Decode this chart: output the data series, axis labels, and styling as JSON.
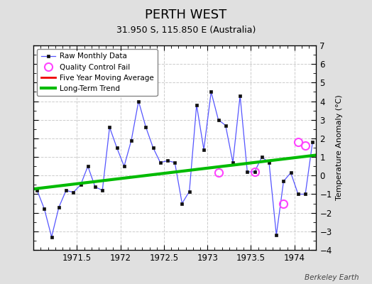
{
  "title": "PERTH WEST",
  "subtitle": "31.950 S, 115.850 E (Australia)",
  "ylabel": "Temperature Anomaly (°C)",
  "watermark": "Berkeley Earth",
  "xlim": [
    1971.0,
    1974.25
  ],
  "ylim": [
    -4,
    7
  ],
  "yticks": [
    -4,
    -3,
    -2,
    -1,
    0,
    1,
    2,
    3,
    4,
    5,
    6,
    7
  ],
  "xticks": [
    1971.5,
    1972.0,
    1972.5,
    1973.0,
    1973.5,
    1974.0
  ],
  "xticklabels": [
    "1971.5",
    "1972",
    "1972.5",
    "1973",
    "1973.5",
    "1974"
  ],
  "raw_x": [
    1971.042,
    1971.125,
    1971.208,
    1971.292,
    1971.375,
    1971.458,
    1971.542,
    1971.625,
    1971.708,
    1971.792,
    1971.875,
    1971.958,
    1972.042,
    1972.125,
    1972.208,
    1972.292,
    1972.375,
    1972.458,
    1972.542,
    1972.625,
    1972.708,
    1972.792,
    1972.875,
    1972.958,
    1973.042,
    1973.125,
    1973.208,
    1973.292,
    1973.375,
    1973.458,
    1973.542,
    1973.625,
    1973.708,
    1973.792,
    1973.875,
    1973.958,
    1974.042,
    1974.125,
    1974.208
  ],
  "raw_y": [
    -0.8,
    -1.8,
    -3.3,
    -1.7,
    -0.8,
    -0.9,
    -0.5,
    0.5,
    -0.6,
    -0.8,
    2.6,
    1.5,
    0.5,
    1.9,
    4.0,
    2.6,
    1.5,
    0.7,
    0.8,
    0.7,
    -1.5,
    -0.85,
    3.8,
    1.4,
    4.5,
    3.0,
    2.7,
    0.7,
    4.3,
    0.2,
    0.2,
    1.0,
    0.7,
    -3.2,
    -0.3,
    0.15,
    -1.0,
    -1.0,
    1.8
  ],
  "qc_fail_x": [
    1973.125,
    1973.542,
    1973.875,
    1974.042,
    1974.125
  ],
  "qc_fail_y": [
    0.15,
    0.2,
    -1.5,
    1.8,
    1.6
  ],
  "trend_x": [
    1971.0,
    1974.25
  ],
  "trend_y": [
    -0.72,
    1.1
  ],
  "bg_color": "#e0e0e0",
  "plot_bg_color": "#ffffff",
  "raw_line_color": "#5555ff",
  "raw_marker_color": "#111111",
  "qc_marker_color": "#ff44ff",
  "trend_color": "#00bb00",
  "five_yr_color": "#ee0000",
  "grid_color": "#cccccc",
  "title_fontsize": 13,
  "subtitle_fontsize": 9,
  "ylabel_fontsize": 8,
  "tick_fontsize": 8.5,
  "legend_fontsize": 7.5
}
